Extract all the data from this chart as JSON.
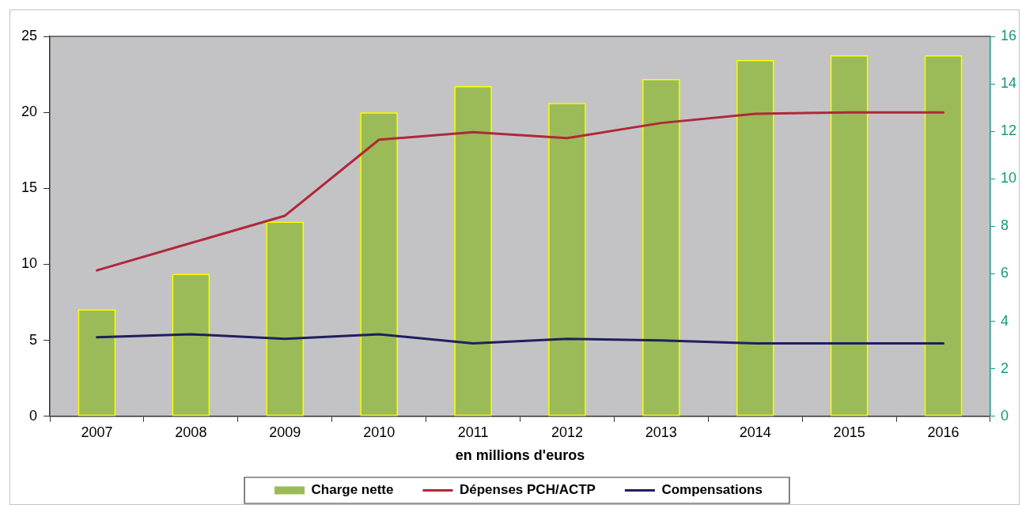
{
  "chart_data": {
    "type": "bar",
    "xlabel": "en millions d'euros",
    "categories": [
      "2007",
      "2008",
      "2009",
      "2010",
      "2011",
      "2012",
      "2013",
      "2014",
      "2015",
      "2016"
    ],
    "series": [
      {
        "name": "Charge nette",
        "axis": "y2",
        "color": "#9bbb59",
        "values": [
          4.5,
          6.0,
          8.2,
          12.8,
          13.9,
          13.2,
          14.2,
          15.0,
          15.2,
          15.2
        ]
      },
      {
        "name": "Dépenses PCH/ACTP",
        "type": "line",
        "color": "#b0283a",
        "values": [
          9.6,
          11.4,
          13.2,
          18.2,
          18.7,
          18.3,
          19.3,
          19.9,
          20.0,
          20.0
        ]
      },
      {
        "name": "Compensations",
        "type": "line",
        "color": "#1f1f5f",
        "values": [
          5.2,
          5.4,
          5.1,
          5.4,
          4.8,
          5.1,
          5.0,
          4.8,
          4.8,
          4.8
        ]
      }
    ],
    "ylim": [
      0,
      25
    ],
    "yticks": [
      0,
      5,
      10,
      15,
      20,
      25
    ],
    "y2lim": [
      0,
      16
    ],
    "y2ticks": [
      0,
      2,
      4,
      6,
      8,
      10,
      12,
      14,
      16
    ],
    "grid": false,
    "legend": "bottom",
    "marker": "none"
  }
}
